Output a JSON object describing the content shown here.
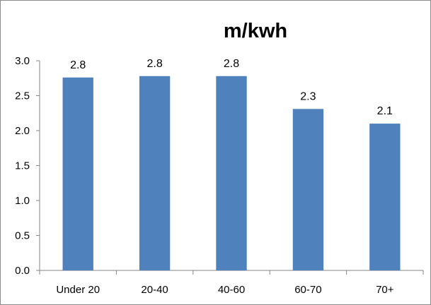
{
  "chart_data": {
    "type": "bar",
    "title": "m/kwh",
    "categories": [
      "Under 20",
      "20-40",
      "40-60",
      "60-70",
      "70+"
    ],
    "values": [
      2.76,
      2.78,
      2.78,
      2.31,
      2.1
    ],
    "data_labels": [
      "2.8",
      "2.8",
      "2.8",
      "2.3",
      "2.1"
    ],
    "y_ticks": [
      "0.0",
      "0.5",
      "1.0",
      "1.5",
      "2.0",
      "2.5",
      "3.0"
    ],
    "ylim": [
      0,
      3
    ],
    "xlabel": "",
    "ylabel": "",
    "grid": false,
    "legend": "none",
    "bar_color": "#4f81bd",
    "axis_color": "#868686"
  }
}
